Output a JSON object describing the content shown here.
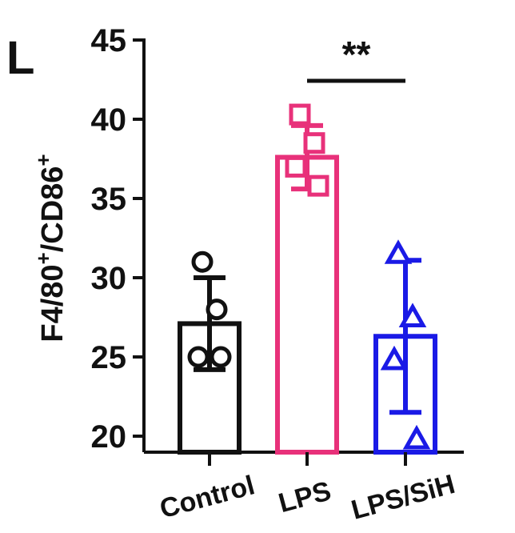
{
  "panel_label": "L",
  "chart_data": {
    "type": "bar",
    "ylabel_parts": [
      "F4/80",
      "+",
      "/CD86",
      "+"
    ],
    "ylim": [
      20,
      45
    ],
    "yticks": [
      20,
      25,
      30,
      35,
      40,
      45
    ],
    "categories": [
      "Control",
      "LPS",
      "LPS/SiH"
    ],
    "values": [
      27.1,
      37.6,
      26.3
    ],
    "error": [
      2.9,
      2.0,
      4.8
    ],
    "colors": [
      "#111111",
      "#e8317a",
      "#1a1ae6"
    ],
    "markers": [
      "circle",
      "square",
      "triangle"
    ],
    "points": [
      [
        31.0,
        28.0,
        25.0,
        25.0
      ],
      [
        40.3,
        38.5,
        37.0,
        35.8
      ],
      [
        31.5,
        27.5,
        24.8,
        19.8
      ]
    ],
    "significance": {
      "from": 1,
      "to": 2,
      "label": "**"
    }
  }
}
